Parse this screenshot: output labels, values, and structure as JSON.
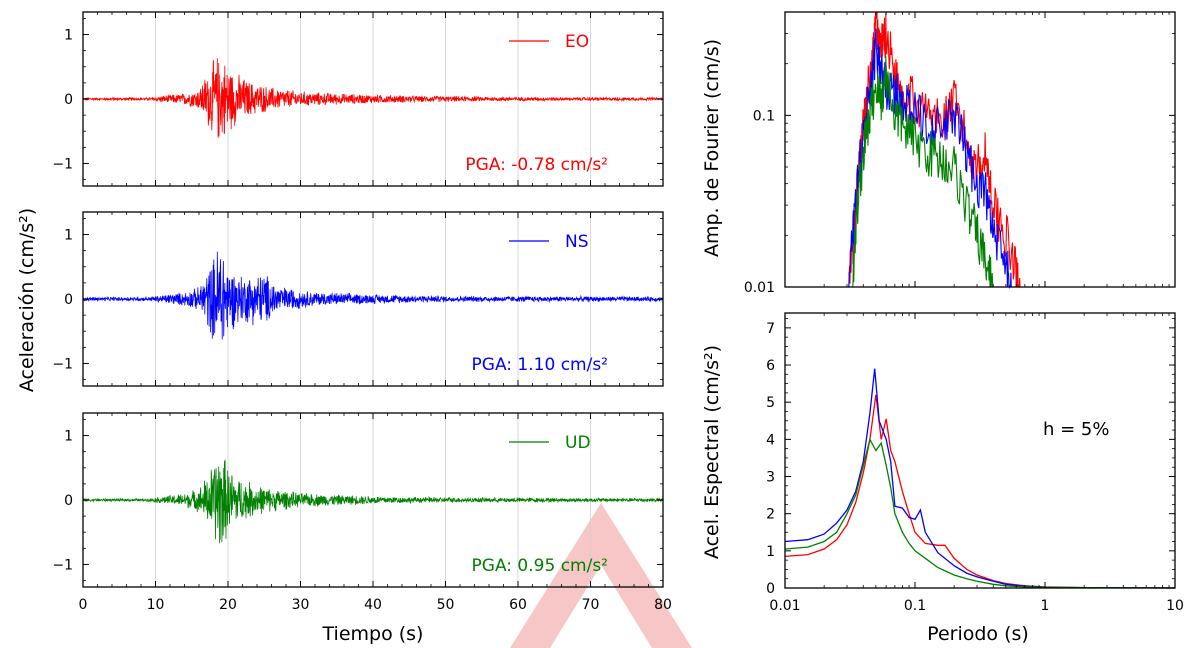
{
  "figure": {
    "left_ylabel": "Aceleración (cm/s²)",
    "left_xlabel": "Tiempo (s)",
    "right_xlabel": "Periodo (s)"
  },
  "watermark": {
    "color": "#f7c6c6"
  },
  "chart_data": [
    {
      "type": "line",
      "name": "EO",
      "color": "#ff0000",
      "pga_label": "PGA: -0.78 cm/s²",
      "xlim": [
        0,
        80
      ],
      "ylim": [
        -1.35,
        1.35
      ],
      "x_ticks": [
        0,
        10,
        20,
        30,
        40,
        50,
        60,
        70,
        80
      ],
      "y_ticks": [
        -1,
        0,
        1
      ],
      "grid_x": true,
      "envelope": [
        [
          0,
          0.02
        ],
        [
          9,
          0.025
        ],
        [
          11,
          0.06
        ],
        [
          14,
          0.1
        ],
        [
          16,
          0.18
        ],
        [
          17.5,
          0.55
        ],
        [
          18.5,
          0.75
        ],
        [
          19.5,
          0.68
        ],
        [
          21,
          0.45
        ],
        [
          23,
          0.3
        ],
        [
          26,
          0.2
        ],
        [
          30,
          0.13
        ],
        [
          36,
          0.09
        ],
        [
          45,
          0.06
        ],
        [
          55,
          0.04
        ],
        [
          65,
          0.03
        ],
        [
          80,
          0.025
        ]
      ],
      "legend": "top-right"
    },
    {
      "type": "line",
      "name": "NS",
      "color": "#0000ff",
      "pga_label": "PGA: 1.10 cm/s²",
      "xlim": [
        0,
        80
      ],
      "ylim": [
        -1.35,
        1.35
      ],
      "x_ticks": [
        0,
        10,
        20,
        30,
        40,
        50,
        60,
        70,
        80
      ],
      "y_ticks": [
        -1,
        0,
        1
      ],
      "grid_x": true,
      "envelope": [
        [
          0,
          0.03
        ],
        [
          9,
          0.035
        ],
        [
          11,
          0.07
        ],
        [
          14,
          0.12
        ],
        [
          16,
          0.2
        ],
        [
          18,
          0.7
        ],
        [
          19,
          1.1
        ],
        [
          20,
          0.55
        ],
        [
          22,
          0.4
        ],
        [
          25,
          0.45
        ],
        [
          27,
          0.22
        ],
        [
          32,
          0.12
        ],
        [
          40,
          0.08
        ],
        [
          50,
          0.05
        ],
        [
          65,
          0.045
        ],
        [
          80,
          0.04
        ]
      ],
      "legend": "top-right"
    },
    {
      "type": "line",
      "name": "UD",
      "color": "#008000",
      "pga_label": "PGA: 0.95 cm/s²",
      "xlim": [
        0,
        80
      ],
      "ylim": [
        -1.35,
        1.35
      ],
      "x_ticks": [
        0,
        10,
        20,
        30,
        40,
        50,
        60,
        70,
        80
      ],
      "y_ticks": [
        -1,
        0,
        1
      ],
      "grid_x": true,
      "envelope": [
        [
          0,
          0.02
        ],
        [
          9,
          0.025
        ],
        [
          11,
          0.06
        ],
        [
          14,
          0.12
        ],
        [
          16,
          0.2
        ],
        [
          17.5,
          0.5
        ],
        [
          19,
          0.95
        ],
        [
          20,
          0.55
        ],
        [
          22,
          0.35
        ],
        [
          25,
          0.22
        ],
        [
          30,
          0.12
        ],
        [
          35,
          0.09
        ],
        [
          45,
          0.05
        ],
        [
          55,
          0.04
        ],
        [
          80,
          0.03
        ]
      ],
      "legend": "top-right"
    },
    {
      "type": "line",
      "ylabel": "Amp. de Fourier (cm/s)",
      "x_scale": "log",
      "y_scale": "log",
      "xlim": [
        0.01,
        10
      ],
      "ylim": [
        0.01,
        0.4
      ],
      "y_tick_labels": [
        "0.01",
        "0.1"
      ],
      "series": [
        {
          "color": "#ff0000",
          "points": [
            [
              0.031,
              0.01
            ],
            [
              0.034,
              0.02
            ],
            [
              0.037,
              0.05
            ],
            [
              0.042,
              0.12
            ],
            [
              0.047,
              0.2
            ],
            [
              0.05,
              0.35
            ],
            [
              0.055,
              0.25
            ],
            [
              0.06,
              0.3
            ],
            [
              0.07,
              0.18
            ],
            [
              0.08,
              0.14
            ],
            [
              0.1,
              0.12
            ],
            [
              0.13,
              0.1
            ],
            [
              0.16,
              0.09
            ],
            [
              0.2,
              0.12
            ],
            [
              0.25,
              0.07
            ],
            [
              0.3,
              0.05
            ],
            [
              0.35,
              0.06
            ],
            [
              0.4,
              0.03
            ],
            [
              0.5,
              0.02
            ],
            [
              0.6,
              0.012
            ],
            [
              0.65,
              0.01
            ]
          ]
        },
        {
          "color": "#0000ff",
          "points": [
            [
              0.031,
              0.01
            ],
            [
              0.034,
              0.025
            ],
            [
              0.037,
              0.05
            ],
            [
              0.042,
              0.1
            ],
            [
              0.047,
              0.15
            ],
            [
              0.05,
              0.25
            ],
            [
              0.055,
              0.18
            ],
            [
              0.06,
              0.15
            ],
            [
              0.07,
              0.13
            ],
            [
              0.08,
              0.12
            ],
            [
              0.1,
              0.1
            ],
            [
              0.13,
              0.09
            ],
            [
              0.16,
              0.08
            ],
            [
              0.2,
              0.1
            ],
            [
              0.25,
              0.06
            ],
            [
              0.3,
              0.04
            ],
            [
              0.35,
              0.035
            ],
            [
              0.4,
              0.02
            ],
            [
              0.5,
              0.013
            ],
            [
              0.55,
              0.01
            ]
          ]
        },
        {
          "color": "#008000",
          "points": [
            [
              0.033,
              0.01
            ],
            [
              0.036,
              0.03
            ],
            [
              0.04,
              0.06
            ],
            [
              0.045,
              0.1
            ],
            [
              0.05,
              0.15
            ],
            [
              0.055,
              0.12
            ],
            [
              0.06,
              0.18
            ],
            [
              0.07,
              0.1
            ],
            [
              0.08,
              0.09
            ],
            [
              0.1,
              0.07
            ],
            [
              0.13,
              0.06
            ],
            [
              0.16,
              0.055
            ],
            [
              0.2,
              0.05
            ],
            [
              0.25,
              0.03
            ],
            [
              0.3,
              0.02
            ],
            [
              0.35,
              0.014
            ],
            [
              0.4,
              0.01
            ]
          ]
        }
      ]
    },
    {
      "type": "line",
      "ylabel": "Acel. Espectral (cm/s²)",
      "annotation": "h = 5%",
      "x_scale": "log",
      "xlim": [
        0.01,
        10
      ],
      "x_tick_labels": [
        "0.01",
        "0.1",
        "1",
        "10"
      ],
      "ylim": [
        0,
        7.4
      ],
      "y_ticks": [
        0,
        1,
        2,
        3,
        4,
        5,
        6,
        7
      ],
      "series": [
        {
          "color": "#ff0000",
          "points": [
            [
              0.01,
              0.85
            ],
            [
              0.015,
              0.9
            ],
            [
              0.02,
              1.05
            ],
            [
              0.025,
              1.3
            ],
            [
              0.03,
              1.7
            ],
            [
              0.035,
              2.3
            ],
            [
              0.04,
              3.1
            ],
            [
              0.045,
              4.0
            ],
            [
              0.05,
              5.2
            ],
            [
              0.055,
              4.0
            ],
            [
              0.06,
              4.55
            ],
            [
              0.065,
              3.7
            ],
            [
              0.07,
              3.4
            ],
            [
              0.08,
              2.6
            ],
            [
              0.09,
              2.0
            ],
            [
              0.1,
              1.5
            ],
            [
              0.12,
              1.2
            ],
            [
              0.15,
              1.15
            ],
            [
              0.17,
              1.15
            ],
            [
              0.2,
              0.8
            ],
            [
              0.25,
              0.5
            ],
            [
              0.3,
              0.35
            ],
            [
              0.4,
              0.2
            ],
            [
              0.5,
              0.12
            ],
            [
              0.7,
              0.06
            ],
            [
              1,
              0.03
            ],
            [
              2,
              0.01
            ],
            [
              10,
              0.0
            ]
          ]
        },
        {
          "color": "#0000ff",
          "points": [
            [
              0.01,
              1.25
            ],
            [
              0.015,
              1.3
            ],
            [
              0.02,
              1.45
            ],
            [
              0.025,
              1.75
            ],
            [
              0.03,
              2.1
            ],
            [
              0.035,
              2.6
            ],
            [
              0.04,
              3.4
            ],
            [
              0.045,
              4.7
            ],
            [
              0.049,
              5.9
            ],
            [
              0.053,
              4.5
            ],
            [
              0.06,
              4.0
            ],
            [
              0.065,
              3.4
            ],
            [
              0.07,
              2.2
            ],
            [
              0.08,
              2.15
            ],
            [
              0.09,
              1.9
            ],
            [
              0.1,
              1.85
            ],
            [
              0.11,
              2.1
            ],
            [
              0.12,
              1.5
            ],
            [
              0.15,
              0.95
            ],
            [
              0.2,
              0.6
            ],
            [
              0.25,
              0.4
            ],
            [
              0.3,
              0.3
            ],
            [
              0.4,
              0.18
            ],
            [
              0.5,
              0.1
            ],
            [
              0.7,
              0.05
            ],
            [
              1,
              0.02
            ],
            [
              2,
              0.01
            ],
            [
              10,
              0.0
            ]
          ]
        },
        {
          "color": "#008000",
          "points": [
            [
              0.01,
              1.05
            ],
            [
              0.015,
              1.1
            ],
            [
              0.02,
              1.25
            ],
            [
              0.025,
              1.5
            ],
            [
              0.03,
              2.0
            ],
            [
              0.035,
              2.5
            ],
            [
              0.04,
              3.3
            ],
            [
              0.045,
              4.0
            ],
            [
              0.05,
              3.7
            ],
            [
              0.055,
              3.9
            ],
            [
              0.06,
              3.3
            ],
            [
              0.065,
              2.7
            ],
            [
              0.07,
              2.0
            ],
            [
              0.08,
              1.5
            ],
            [
              0.09,
              1.2
            ],
            [
              0.1,
              1.0
            ],
            [
              0.12,
              0.8
            ],
            [
              0.15,
              0.55
            ],
            [
              0.2,
              0.35
            ],
            [
              0.25,
              0.25
            ],
            [
              0.3,
              0.18
            ],
            [
              0.4,
              0.1
            ],
            [
              0.5,
              0.06
            ],
            [
              0.7,
              0.03
            ],
            [
              1,
              0.015
            ],
            [
              10,
              0.0
            ]
          ]
        }
      ]
    }
  ]
}
